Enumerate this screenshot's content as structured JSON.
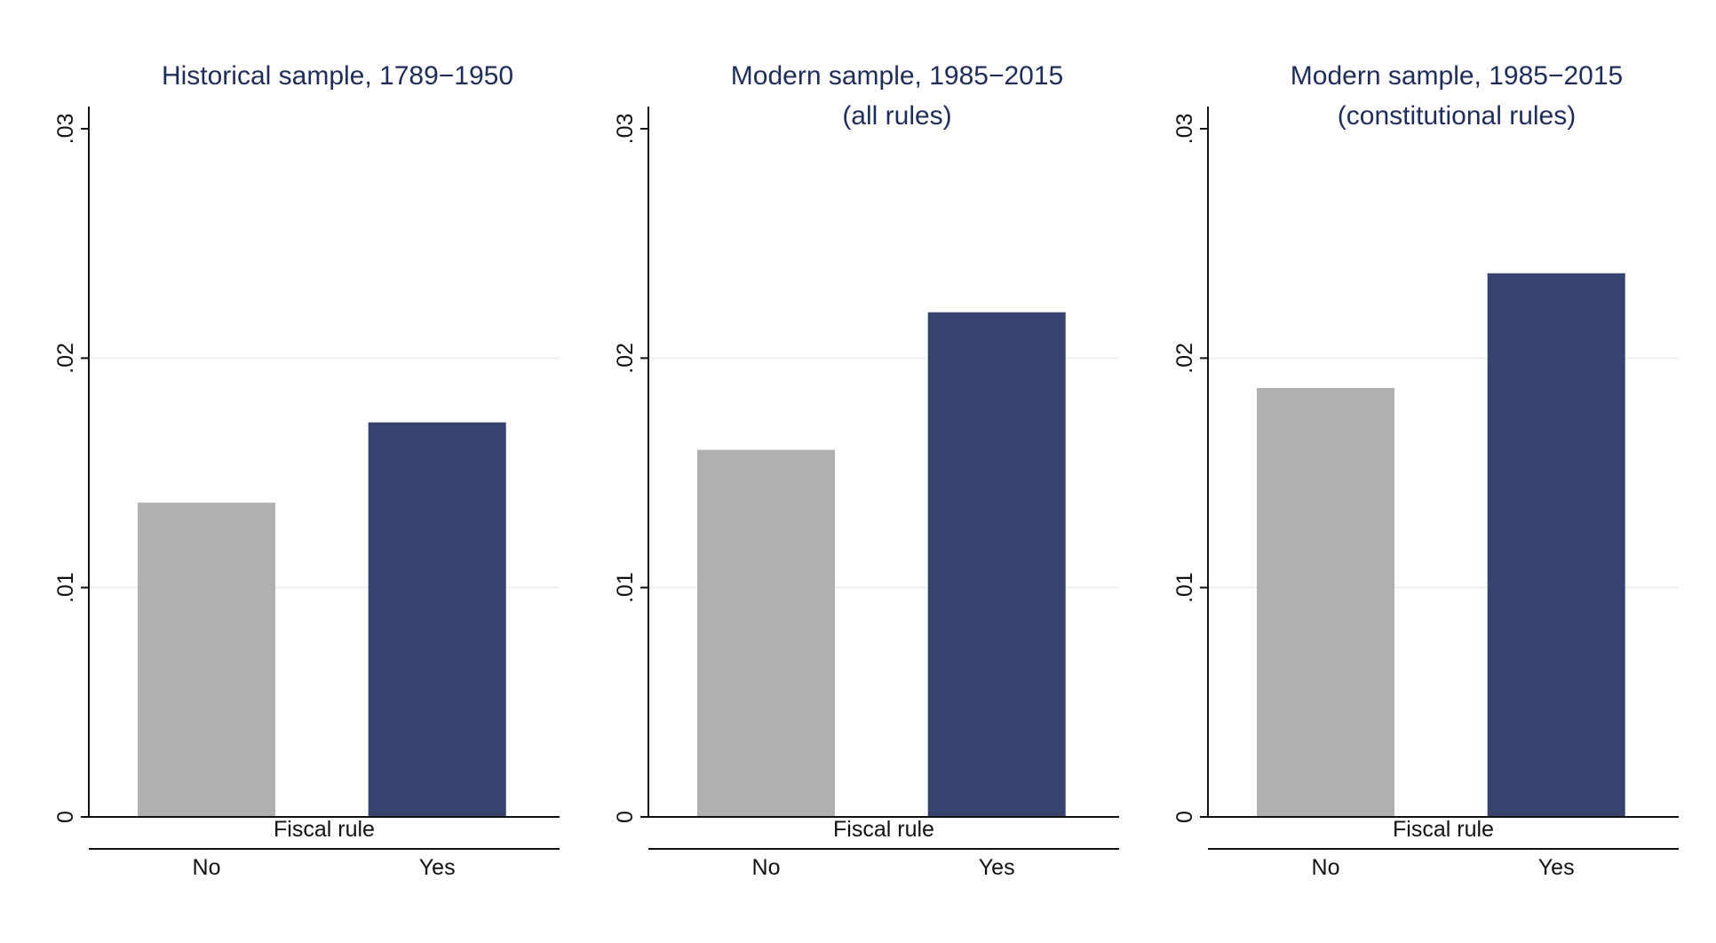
{
  "colors": {
    "no_bar": "#b0b0b0",
    "yes_bar": "#37426e",
    "title": "#1f2d5a",
    "axis": "#111111",
    "grid": "#eef0f2"
  },
  "chart_data": [
    {
      "type": "bar",
      "title_lines": [
        "Historical sample, 1789−1950"
      ],
      "xlabel": "Fiscal rule",
      "ylabel": "",
      "categories": [
        "No",
        "Yes"
      ],
      "values": [
        0.0137,
        0.0172
      ],
      "bar_colors": [
        "#b0b0b0",
        "#37426e"
      ],
      "ylim": [
        0,
        0.03
      ],
      "yticks": [
        0,
        0.01,
        0.02,
        0.03
      ],
      "ytick_labels": [
        "0",
        ".01",
        ".02",
        ".03"
      ],
      "grid": true
    },
    {
      "type": "bar",
      "title_lines": [
        "Modern sample, 1985−2015",
        "(all rules)"
      ],
      "xlabel": "Fiscal rule",
      "ylabel": "",
      "categories": [
        "No",
        "Yes"
      ],
      "values": [
        0.016,
        0.022
      ],
      "bar_colors": [
        "#b0b0b0",
        "#37426e"
      ],
      "ylim": [
        0,
        0.03
      ],
      "yticks": [
        0,
        0.01,
        0.02,
        0.03
      ],
      "ytick_labels": [
        "0",
        ".01",
        ".02",
        ".03"
      ],
      "grid": true
    },
    {
      "type": "bar",
      "title_lines": [
        "Modern sample, 1985−2015",
        "(constitutional rules)"
      ],
      "xlabel": "Fiscal rule",
      "ylabel": "",
      "categories": [
        "No",
        "Yes"
      ],
      "values": [
        0.0187,
        0.0237
      ],
      "bar_colors": [
        "#b0b0b0",
        "#37426e"
      ],
      "ylim": [
        0,
        0.03
      ],
      "yticks": [
        0,
        0.01,
        0.02,
        0.03
      ],
      "ytick_labels": [
        "0",
        ".01",
        ".02",
        ".03"
      ],
      "grid": true
    }
  ]
}
